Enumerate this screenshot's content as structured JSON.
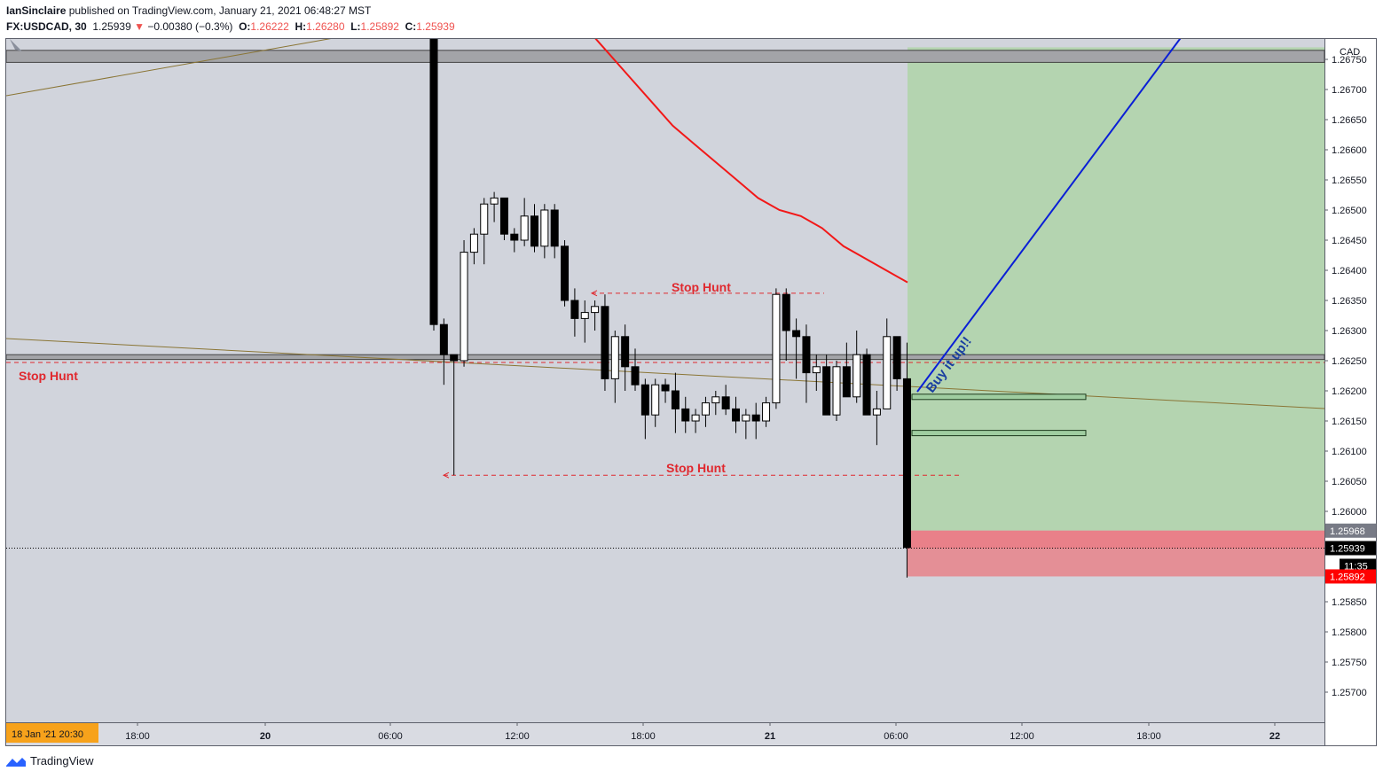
{
  "header": {
    "author": "IanSinclaire",
    "published_text": " published on TradingView.com, January 21, 2021 06:48:27 MST",
    "symbol": "FX:USDCAD, 30",
    "last": "1.25939",
    "change_arrow": "▼",
    "change": "−0.00380 (−0.3%)",
    "o_label": "O:",
    "o_value": "1.26222",
    "h_label": "H:",
    "h_value": "1.26280",
    "l_label": "L:",
    "l_value": "1.25892",
    "c_label": "C:",
    "c_value": "1.25939"
  },
  "axis": {
    "currency": "CAD",
    "y_ticks": [
      "1.26750",
      "1.26700",
      "1.26650",
      "1.26600",
      "1.26550",
      "1.26500",
      "1.26450",
      "1.26400",
      "1.26350",
      "1.26300",
      "1.26250",
      "1.26200",
      "1.26150",
      "1.26100",
      "1.26050",
      "1.26000",
      "1.25850",
      "1.25800",
      "1.25750",
      "1.25700"
    ],
    "x_ticks": [
      "18:00",
      "20",
      "06:00",
      "12:00",
      "18:00",
      "21",
      "06:00",
      "12:00",
      "18:00",
      "22"
    ],
    "x_bold": [
      "20",
      "21",
      "22"
    ],
    "price_badges": [
      {
        "text": "1.25968",
        "bg": "#787b86"
      },
      {
        "text": "1.25939",
        "bg": "#000000"
      },
      {
        "text": "11:35",
        "bg": "#000000"
      },
      {
        "text": "1.25892",
        "bg": "#ff0000"
      }
    ],
    "date_badge": "18 Jan '21   20:30"
  },
  "annotations": {
    "stop_hunt_top": "Stop Hunt",
    "stop_hunt_left": "Stop Hunt",
    "stop_hunt_bottom": "Stop Hunt",
    "buy_text": "Buy it up!!"
  },
  "colors": {
    "bg_gray": "#d1d4dc",
    "target_zone": "#b4d4b0",
    "stop_zone": "#e48f96",
    "moving_average": "#f21818",
    "trend_line": "#8a7535",
    "projection": "#0a1fd6",
    "annotation_red": "#e0282e"
  },
  "footer": {
    "brand": "TradingView"
  },
  "chart_data": {
    "type": "candlestick",
    "symbol": "FX:USDCAD",
    "interval": "30",
    "ylim": [
      1.2565,
      1.268
    ],
    "candles": [
      [
        1.268,
        1.268,
        1.263,
        1.2631
      ],
      [
        1.2631,
        1.2632,
        1.2621,
        1.2626
      ],
      [
        1.2626,
        1.2626,
        1.2606,
        1.2625
      ],
      [
        1.2625,
        1.2645,
        1.2624,
        1.2643
      ],
      [
        1.2643,
        1.2647,
        1.2641,
        1.2646
      ],
      [
        1.2646,
        1.2652,
        1.2641,
        1.2651
      ],
      [
        1.2651,
        1.2653,
        1.2648,
        1.2652
      ],
      [
        1.2652,
        1.2652,
        1.2645,
        1.2646
      ],
      [
        1.2646,
        1.2647,
        1.2643,
        1.2645
      ],
      [
        1.2645,
        1.2652,
        1.2644,
        1.2649
      ],
      [
        1.2649,
        1.2651,
        1.2643,
        1.2644
      ],
      [
        1.2644,
        1.2651,
        1.2642,
        1.265
      ],
      [
        1.265,
        1.2651,
        1.2642,
        1.2644
      ],
      [
        1.2644,
        1.2645,
        1.2634,
        1.2635
      ],
      [
        1.2635,
        1.2637,
        1.2629,
        1.2632
      ],
      [
        1.2632,
        1.2635,
        1.2628,
        1.2633
      ],
      [
        1.2633,
        1.2635,
        1.263,
        1.2634
      ],
      [
        1.2634,
        1.2636,
        1.262,
        1.2622
      ],
      [
        1.2622,
        1.263,
        1.2618,
        1.2629
      ],
      [
        1.2629,
        1.2631,
        1.262,
        1.2624
      ],
      [
        1.2624,
        1.2627,
        1.262,
        1.2621
      ],
      [
        1.2621,
        1.2622,
        1.2612,
        1.2616
      ],
      [
        1.2616,
        1.2622,
        1.2614,
        1.2621
      ],
      [
        1.2621,
        1.2622,
        1.2618,
        1.262
      ],
      [
        1.262,
        1.2623,
        1.2613,
        1.2617
      ],
      [
        1.2617,
        1.2619,
        1.2613,
        1.2615
      ],
      [
        1.2615,
        1.2617,
        1.2613,
        1.2616
      ],
      [
        1.2616,
        1.2619,
        1.2614,
        1.2618
      ],
      [
        1.2618,
        1.262,
        1.2616,
        1.2619
      ],
      [
        1.2619,
        1.2621,
        1.2616,
        1.2617
      ],
      [
        1.2617,
        1.2619,
        1.2613,
        1.2615
      ],
      [
        1.2615,
        1.2617,
        1.2612,
        1.2616
      ],
      [
        1.2616,
        1.2618,
        1.2612,
        1.2615
      ],
      [
        1.2615,
        1.2619,
        1.2614,
        1.2618
      ],
      [
        1.2618,
        1.2637,
        1.2617,
        1.2636
      ],
      [
        1.2636,
        1.2637,
        1.2625,
        1.263
      ],
      [
        1.263,
        1.2632,
        1.2622,
        1.2629
      ],
      [
        1.2629,
        1.2631,
        1.2618,
        1.2623
      ],
      [
        1.2623,
        1.2626,
        1.262,
        1.2624
      ],
      [
        1.2624,
        1.2626,
        1.2616,
        1.2616
      ],
      [
        1.2616,
        1.2625,
        1.2615,
        1.2624
      ],
      [
        1.2624,
        1.2628,
        1.2619,
        1.2619
      ],
      [
        1.2619,
        1.263,
        1.2618,
        1.2626
      ],
      [
        1.2626,
        1.2627,
        1.2616,
        1.2616
      ],
      [
        1.2616,
        1.262,
        1.2611,
        1.2617
      ],
      [
        1.2617,
        1.2632,
        1.2617,
        1.2629
      ],
      [
        1.2629,
        1.2629,
        1.262,
        1.2622
      ],
      [
        1.2622,
        1.2628,
        1.2589,
        1.2594
      ]
    ],
    "moving_average": [
      1.268,
      1.2676,
      1.2672,
      1.2668,
      1.2664,
      1.2661,
      1.2658,
      1.2655,
      1.2652,
      1.265,
      1.2649,
      1.2647,
      1.2644,
      1.2642,
      1.264,
      1.2638
    ],
    "levels": {
      "resistance_band": [
        1.26745,
        1.26765
      ],
      "support_band": [
        1.26252,
        1.2626
      ],
      "stop_hunt_high": 1.26362,
      "stop_hunt_low": 1.2606,
      "stop_hunt_mid": 1.26247,
      "last_price": 1.25939,
      "position_entry": 1.25968,
      "position_stop": 1.25892,
      "position_target": 1.2677,
      "order_levels": [
        1.2619,
        1.2613
      ]
    }
  }
}
